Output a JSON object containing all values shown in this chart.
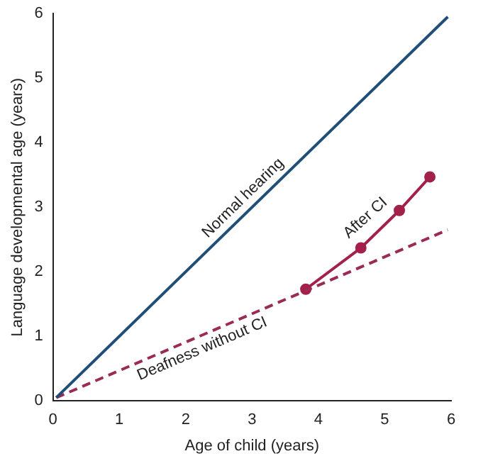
{
  "chart_data": {
    "type": "line",
    "xlabel": "Age of child (years)",
    "ylabel": "Language developmental age (years)",
    "xlim": [
      0,
      6
    ],
    "ylim": [
      0,
      6
    ],
    "xticks": [
      0,
      1,
      2,
      3,
      4,
      5,
      6
    ],
    "yticks": [
      0,
      1,
      2,
      3,
      4,
      5,
      6
    ],
    "grid": false,
    "legend": false,
    "series": [
      {
        "name": "Normal hearing",
        "color": "#1f4e79",
        "x": [
          0.05,
          5.95
        ],
        "values": [
          0.05,
          5.95
        ],
        "line_style": "solid",
        "marker": "none"
      },
      {
        "name": "Deafness without CI",
        "color": "#9b2a55",
        "x": [
          0.05,
          5.95
        ],
        "values": [
          0.05,
          2.65
        ],
        "line_style": "dashed",
        "marker": "none"
      },
      {
        "name": "After CI",
        "color": "#a3204a",
        "x": [
          3.81,
          4.64,
          5.22,
          5.68
        ],
        "values": [
          1.73,
          2.37,
          2.95,
          3.47
        ],
        "line_style": "solid",
        "marker": "circle"
      }
    ]
  }
}
